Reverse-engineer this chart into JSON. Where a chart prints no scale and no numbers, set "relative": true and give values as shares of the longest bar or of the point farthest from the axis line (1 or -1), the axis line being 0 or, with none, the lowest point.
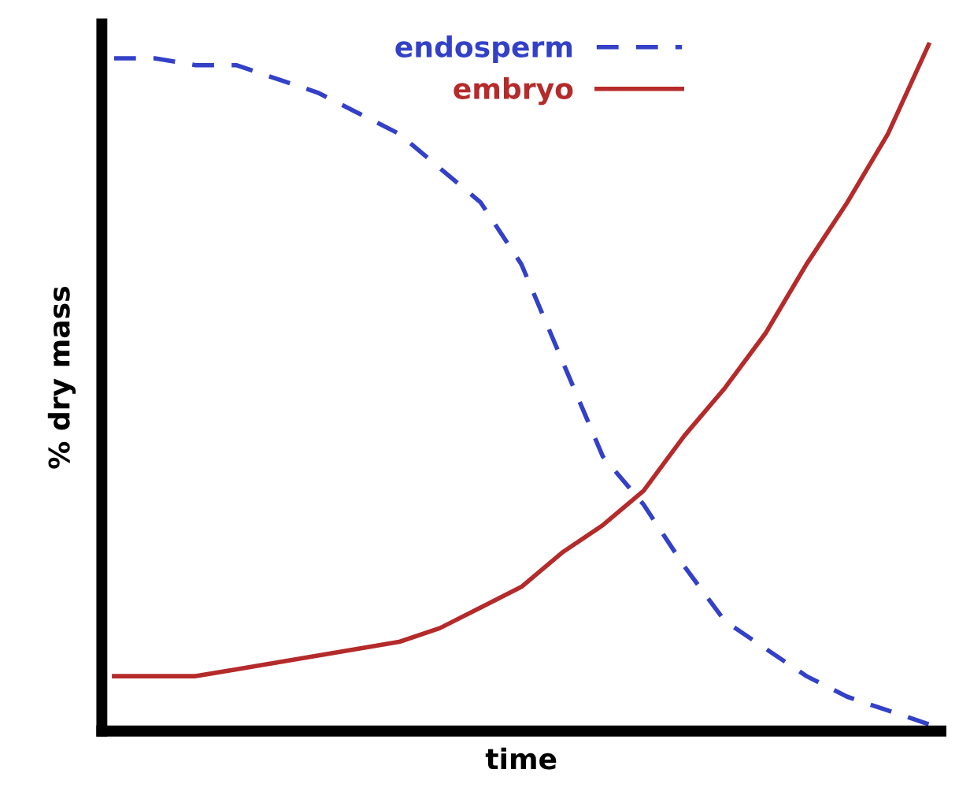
{
  "chart_data": {
    "type": "line",
    "relative": true,
    "xlabel": "time",
    "ylabel": "% dry mass",
    "categories": [
      null,
      null,
      null,
      null,
      null,
      null,
      null,
      null,
      null,
      null,
      null,
      null,
      null,
      null,
      null,
      null,
      null,
      null,
      null,
      null,
      null
    ],
    "legend": "top",
    "series": [
      {
        "name": "endosperm",
        "color": "#3340c8",
        "line_style": "dashed",
        "values": [
          0.98,
          0.98,
          0.97,
          0.97,
          0.95,
          0.93,
          0.9,
          0.87,
          0.82,
          0.77,
          0.68,
          0.54,
          0.4,
          0.33,
          0.24,
          0.16,
          0.12,
          0.08,
          0.05,
          0.03,
          0.01
        ]
      },
      {
        "name": "embryo",
        "color": "#b52a2a",
        "line_style": "solid",
        "values": [
          0.08,
          0.08,
          0.08,
          0.09,
          0.1,
          0.11,
          0.12,
          0.13,
          0.15,
          0.18,
          0.21,
          0.26,
          0.3,
          0.35,
          0.43,
          0.5,
          0.58,
          0.68,
          0.77,
          0.87,
          1.0
        ]
      }
    ]
  }
}
